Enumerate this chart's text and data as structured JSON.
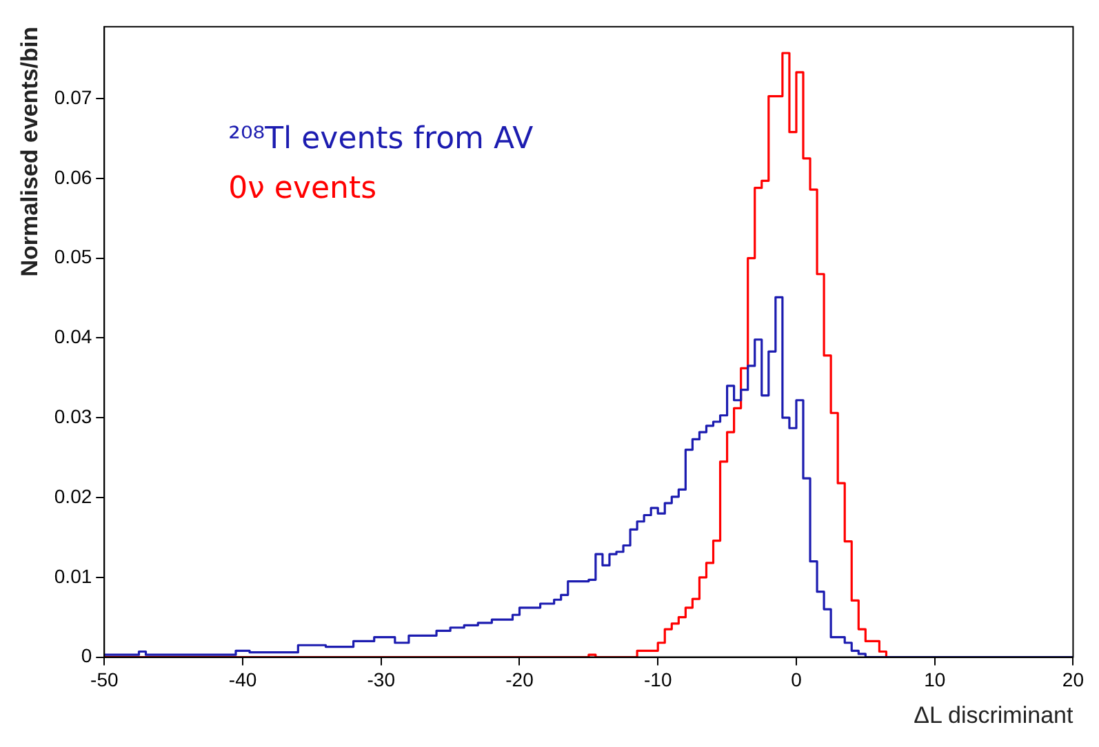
{
  "chart_data": {
    "type": "histogram",
    "xlabel": "ΔL discriminant",
    "ylabel": "Normalised events/bin",
    "xlim": [
      -50,
      20
    ],
    "xticks": [
      -50,
      -40,
      -30,
      -20,
      -10,
      0,
      10,
      20
    ],
    "ylim": [
      0,
      0.079
    ],
    "yticks": [
      0,
      0.01,
      0.02,
      0.03,
      0.04,
      0.05,
      0.06,
      0.07
    ],
    "legend": "top left",
    "bins": [
      -50,
      -49.5,
      -49,
      -48.5,
      -48,
      -47.5,
      -47,
      -46.5,
      -46,
      -45.5,
      -45,
      -44.5,
      -44,
      -43.5,
      -43,
      -42.5,
      -42,
      -41.5,
      -41,
      -40.5,
      -40,
      -39.5,
      -39,
      -38.5,
      -38,
      -37.5,
      -37,
      -36.5,
      -36,
      -35.5,
      -35,
      -34.5,
      -34,
      -33.5,
      -33,
      -32.5,
      -32,
      -31.5,
      -31,
      -30.5,
      -30,
      -29.5,
      -29,
      -28.5,
      -28,
      -27.5,
      -27,
      -26.5,
      -26,
      -25.5,
      -25,
      -24.5,
      -24,
      -23.5,
      -23,
      -22.5,
      -22,
      -21.5,
      -21,
      -20.5,
      -20,
      -19.5,
      -19,
      -18.5,
      -18,
      -17.5,
      -17,
      -16.5,
      -16,
      -15.5,
      -15,
      -14.5,
      -14,
      -13.5,
      -13,
      -12.5,
      -12,
      -11.5,
      -11,
      -10.5,
      -10,
      -9.5,
      -9,
      -8.5,
      -8,
      -7.5,
      -7,
      -6.5,
      -6,
      -5.5,
      -5,
      -4.5,
      -4,
      -3.5,
      -3,
      -2.5,
      -2,
      -1.5,
      -1,
      -0.5,
      0,
      0.5,
      1,
      1.5,
      2,
      2.5,
      3,
      3.5,
      4,
      4.5,
      5,
      5.5,
      6,
      6.5,
      7,
      7.5,
      8,
      8.5,
      9,
      9.5,
      10,
      10.5,
      11,
      11.5,
      12,
      12.5,
      13,
      13.5,
      14,
      14.5,
      15,
      15.5,
      16,
      16.5,
      17,
      17.5,
      18,
      18.5,
      19,
      19.5,
      20
    ],
    "series": [
      {
        "name": "²⁰⁸Tl events from AV",
        "color": "#1c1cb0",
        "values": [
          0.0003,
          0.0003,
          0.0003,
          0.0003,
          0.0003,
          0.0007,
          0.0003,
          0.0003,
          0.0003,
          0.0003,
          0.0003,
          0.0003,
          0.0003,
          0.0003,
          0.0003,
          0.0003,
          0.0003,
          0.0003,
          0.0003,
          0.0008,
          0.0008,
          0.0006,
          0.0006,
          0.0006,
          0.0006,
          0.0006,
          0.0006,
          0.0006,
          0.0015,
          0.0015,
          0.0015,
          0.0015,
          0.0013,
          0.0013,
          0.0013,
          0.0013,
          0.002,
          0.002,
          0.002,
          0.0025,
          0.0025,
          0.0025,
          0.0018,
          0.0018,
          0.0027,
          0.0027,
          0.0027,
          0.0027,
          0.0033,
          0.0033,
          0.0037,
          0.0037,
          0.004,
          0.004,
          0.0043,
          0.0043,
          0.0047,
          0.0047,
          0.0047,
          0.0053,
          0.0062,
          0.0062,
          0.0062,
          0.0067,
          0.0067,
          0.0072,
          0.0078,
          0.0095,
          0.0095,
          0.0095,
          0.0097,
          0.0129,
          0.0115,
          0.0129,
          0.0132,
          0.014,
          0.016,
          0.017,
          0.0178,
          0.0187,
          0.018,
          0.0193,
          0.0201,
          0.021,
          0.026,
          0.0273,
          0.0282,
          0.029,
          0.0295,
          0.0303,
          0.034,
          0.0322,
          0.0335,
          0.0365,
          0.0398,
          0.0328,
          0.0383,
          0.0451,
          0.03,
          0.0287,
          0.0322,
          0.0224,
          0.012,
          0.0082,
          0.006,
          0.0025,
          0.0025,
          0.0018,
          0.0008,
          0.0004,
          0,
          0,
          0,
          0,
          0,
          0,
          0,
          0,
          0,
          0,
          0,
          0,
          0,
          0,
          0,
          0,
          0,
          0,
          0,
          0,
          0,
          0,
          0,
          0,
          0,
          0,
          0,
          0,
          0,
          0
        ]
      },
      {
        "name": "0ν events",
        "color": "#ff0000",
        "values": [
          0,
          0,
          0,
          0,
          0,
          0,
          0,
          0,
          0,
          0,
          0,
          0,
          0,
          0,
          0,
          0,
          0,
          0,
          0,
          0,
          0,
          0,
          0,
          0,
          0,
          0,
          0,
          0,
          0,
          0,
          0,
          0,
          0,
          0,
          0,
          0,
          0,
          0,
          0,
          0,
          0,
          0,
          0,
          0,
          0,
          0,
          0,
          0,
          0,
          0,
          0,
          0,
          0,
          0,
          0,
          0,
          0,
          0,
          0,
          0,
          0,
          0,
          0,
          0,
          0,
          0,
          0,
          0,
          0,
          0,
          0.0003,
          0,
          0,
          0,
          0,
          0,
          0,
          0.0008,
          0.0008,
          0.0008,
          0.0018,
          0.0035,
          0.0042,
          0.005,
          0.0062,
          0.0073,
          0.01,
          0.0118,
          0.0146,
          0.0245,
          0.0282,
          0.0312,
          0.0362,
          0.05,
          0.0588,
          0.0597,
          0.0703,
          0.0703,
          0.0757,
          0.0658,
          0.0733,
          0.0625,
          0.0586,
          0.048,
          0.0378,
          0.0306,
          0.0218,
          0.0145,
          0.0071,
          0.0035,
          0.002,
          0.002,
          0.0007,
          0,
          0,
          0,
          0,
          0,
          0,
          0,
          0,
          0,
          0,
          0,
          0,
          0,
          0,
          0,
          0,
          0,
          0,
          0,
          0,
          0,
          0,
          0,
          0,
          0,
          0,
          0
        ]
      }
    ]
  }
}
